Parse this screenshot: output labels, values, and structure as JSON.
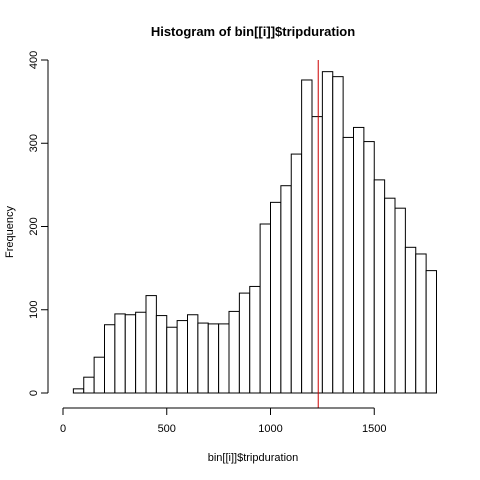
{
  "chart_data": {
    "type": "bar",
    "title": "Histogram of bin[[i]]$tripduration",
    "xlabel": "bin[[i]]$tripduration",
    "ylabel": "Frequency",
    "xlim": [
      0,
      1800
    ],
    "ylim": [
      0,
      400
    ],
    "x_ticks": [
      0,
      500,
      1000,
      1500
    ],
    "y_ticks": [
      0,
      100,
      200,
      300,
      400
    ],
    "bin_width": 50,
    "bin_starts": [
      50,
      100,
      150,
      200,
      250,
      300,
      350,
      400,
      450,
      500,
      550,
      600,
      650,
      700,
      750,
      800,
      850,
      900,
      950,
      1000,
      1050,
      1100,
      1150,
      1200,
      1250,
      1300,
      1350,
      1400,
      1450,
      1500,
      1550,
      1600,
      1650,
      1700,
      1750
    ],
    "values": [
      5,
      19,
      43,
      82,
      95,
      94,
      97,
      117,
      93,
      79,
      87,
      94,
      84,
      83,
      83,
      98,
      120,
      128,
      203,
      229,
      249,
      287,
      376,
      332,
      386,
      380,
      307,
      319,
      302,
      256,
      234,
      222,
      175,
      167,
      147
    ],
    "reference_line": {
      "x": 1230,
      "color": "#cc0000"
    },
    "grid": false,
    "legend": "none",
    "bar_fill": "#ffffff",
    "bar_stroke": "#000000"
  }
}
